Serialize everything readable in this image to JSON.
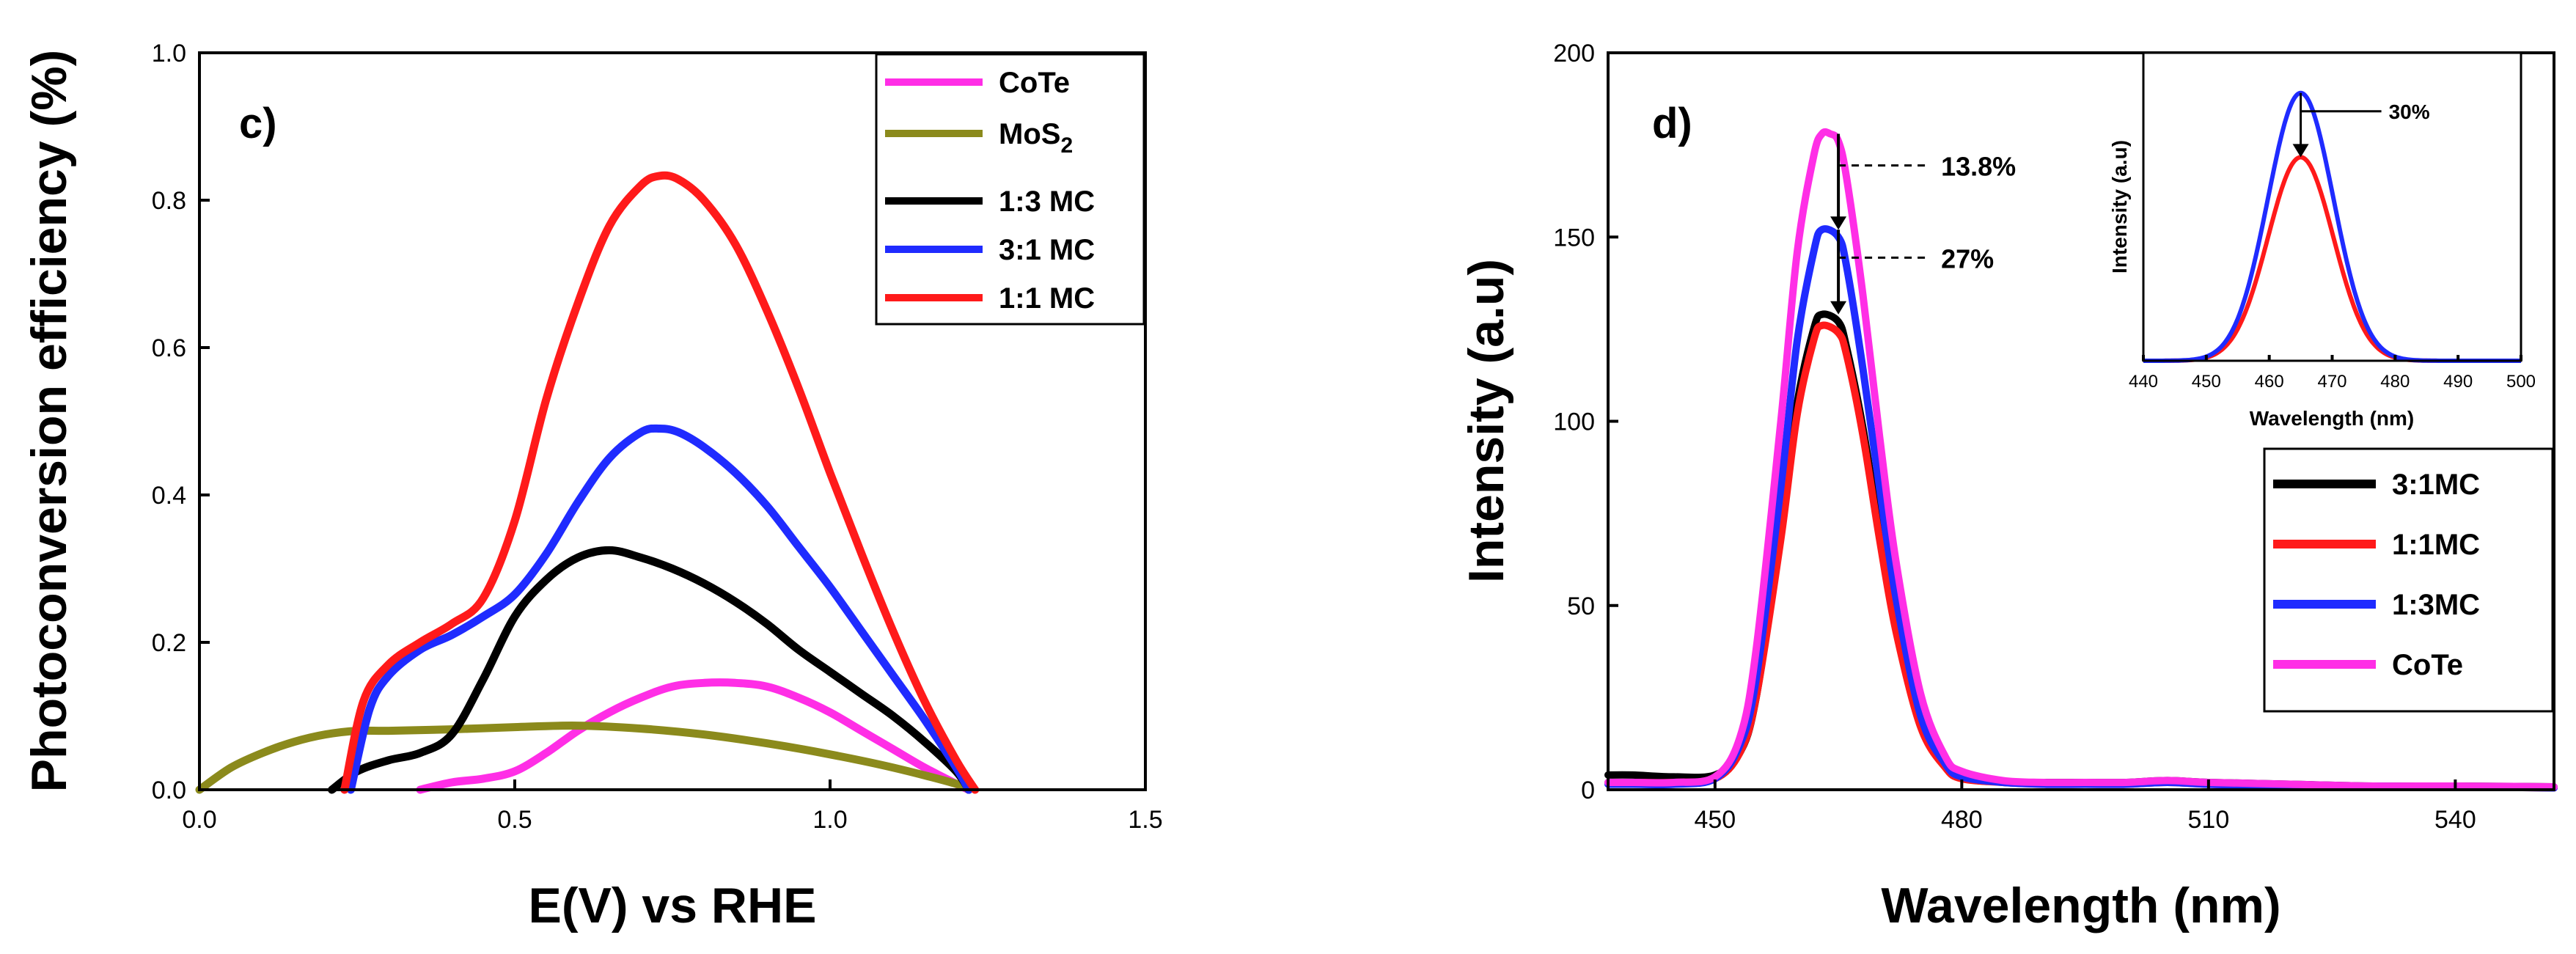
{
  "chart_data": [
    {
      "type": "line",
      "panel_label": "c)",
      "title": "",
      "xlabel": "E(V) vs RHE",
      "ylabel": "Photoconversion efficiency (%)",
      "xlim": [
        0.0,
        1.5
      ],
      "ylim": [
        0.0,
        1.0
      ],
      "xticks": [
        0.0,
        0.5,
        1.0,
        1.5
      ],
      "xtick_labels": [
        "0.0",
        "0.5",
        "1.0",
        "1.5"
      ],
      "yticks": [
        0.0,
        0.2,
        0.4,
        0.6,
        0.8,
        1.0
      ],
      "ytick_labels": [
        "0.0",
        "0.2",
        "0.4",
        "0.6",
        "0.8",
        "1.0"
      ],
      "legend_position": "top-right",
      "series": [
        {
          "name": "CoTe",
          "color": "#ff2ee6",
          "x": [
            0.35,
            0.4,
            0.45,
            0.5,
            0.55,
            0.6,
            0.65,
            0.7,
            0.75,
            0.8,
            0.85,
            0.9,
            0.95,
            1.0,
            1.05,
            1.1,
            1.15,
            1.2,
            1.22
          ],
          "y": [
            0.0,
            0.01,
            0.015,
            0.025,
            0.05,
            0.08,
            0.105,
            0.125,
            0.14,
            0.145,
            0.145,
            0.14,
            0.125,
            0.105,
            0.08,
            0.055,
            0.03,
            0.008,
            0.0
          ]
        },
        {
          "name": "MoS2",
          "label_main": "MoS",
          "label_sub": "2",
          "color": "#8b8a1c",
          "x": [
            0.0,
            0.05,
            0.1,
            0.15,
            0.2,
            0.25,
            0.3,
            0.4,
            0.5,
            0.6,
            0.7,
            0.8,
            0.9,
            1.0,
            1.1,
            1.2,
            1.22
          ],
          "y": [
            0.0,
            0.03,
            0.05,
            0.065,
            0.075,
            0.08,
            0.08,
            0.082,
            0.085,
            0.087,
            0.083,
            0.075,
            0.063,
            0.048,
            0.03,
            0.008,
            0.0
          ]
        },
        {
          "name": "1:3 MC",
          "color": "#000000",
          "x": [
            0.21,
            0.25,
            0.3,
            0.35,
            0.4,
            0.45,
            0.5,
            0.55,
            0.6,
            0.65,
            0.7,
            0.75,
            0.8,
            0.85,
            0.9,
            0.95,
            1.0,
            1.05,
            1.1,
            1.15,
            1.2,
            1.22
          ],
          "y": [
            0.0,
            0.025,
            0.04,
            0.05,
            0.075,
            0.15,
            0.235,
            0.285,
            0.315,
            0.325,
            0.315,
            0.3,
            0.28,
            0.255,
            0.225,
            0.19,
            0.16,
            0.13,
            0.1,
            0.065,
            0.025,
            0.0
          ]
        },
        {
          "name": "3:1 MC",
          "color": "#1f2bff",
          "x": [
            0.24,
            0.27,
            0.3,
            0.35,
            0.4,
            0.45,
            0.5,
            0.55,
            0.6,
            0.65,
            0.7,
            0.73,
            0.76,
            0.8,
            0.85,
            0.9,
            0.95,
            1.0,
            1.05,
            1.1,
            1.15,
            1.2,
            1.22
          ],
          "y": [
            0.0,
            0.11,
            0.155,
            0.19,
            0.21,
            0.235,
            0.265,
            0.32,
            0.39,
            0.45,
            0.485,
            0.49,
            0.485,
            0.465,
            0.43,
            0.385,
            0.33,
            0.275,
            0.215,
            0.155,
            0.095,
            0.03,
            0.0
          ]
        },
        {
          "name": "1:1 MC",
          "color": "#ff1a1a",
          "x": [
            0.23,
            0.26,
            0.3,
            0.35,
            0.4,
            0.45,
            0.5,
            0.55,
            0.6,
            0.65,
            0.7,
            0.73,
            0.76,
            0.8,
            0.85,
            0.9,
            0.95,
            1.0,
            1.05,
            1.1,
            1.15,
            1.2,
            1.23
          ],
          "y": [
            0.0,
            0.12,
            0.17,
            0.2,
            0.225,
            0.26,
            0.365,
            0.53,
            0.66,
            0.765,
            0.82,
            0.833,
            0.828,
            0.8,
            0.74,
            0.65,
            0.545,
            0.43,
            0.32,
            0.215,
            0.12,
            0.04,
            0.0
          ]
        }
      ]
    },
    {
      "type": "line",
      "panel_label": "d)",
      "title": "",
      "xlabel": "Wavelength (nm)",
      "ylabel": "Intensity (a.u)",
      "xlim": [
        437,
        552
      ],
      "ylim": [
        0,
        200
      ],
      "xticks": [
        450,
        480,
        510,
        540
      ],
      "xtick_labels": [
        "450",
        "480",
        "510",
        "540"
      ],
      "yticks": [
        0,
        50,
        100,
        150,
        200
      ],
      "ytick_labels": [
        "0",
        "50",
        "100",
        "150",
        "200"
      ],
      "legend_position": "bottom-right",
      "series": [
        {
          "name": "3:1MC",
          "color": "#000000",
          "x": [
            437,
            440,
            445,
            450,
            453,
            455,
            458,
            460,
            462,
            463,
            465,
            466,
            468,
            470,
            472,
            475,
            478,
            480,
            485,
            490,
            495,
            500,
            505,
            510,
            520,
            530,
            540,
            552
          ],
          "y": [
            4,
            4,
            3.5,
            4,
            10,
            25,
            70,
            105,
            125,
            129,
            127,
            120,
            98,
            70,
            45,
            18,
            7,
            4,
            2,
            2,
            2,
            2,
            2.5,
            2,
            1.5,
            1,
            1,
            0.8
          ]
        },
        {
          "name": "1:1MC",
          "color": "#ff1a1a",
          "x": [
            437,
            440,
            445,
            450,
            453,
            455,
            458,
            460,
            462,
            463,
            465,
            466,
            468,
            470,
            472,
            475,
            478,
            480,
            485,
            490,
            495,
            500,
            505,
            510,
            520,
            530,
            540,
            552
          ],
          "y": [
            2,
            2,
            2,
            3,
            10,
            25,
            68,
            102,
            122,
            126,
            124,
            118,
            96,
            68,
            43,
            17,
            6,
            3,
            2,
            1.5,
            1.5,
            1.5,
            2,
            1.5,
            1,
            1,
            0.8,
            0.5
          ]
        },
        {
          "name": "1:3MC",
          "color": "#1f2bff",
          "x": [
            437,
            440,
            445,
            450,
            453,
            455,
            458,
            460,
            462,
            463,
            465,
            466,
            468,
            470,
            472,
            475,
            478,
            480,
            485,
            490,
            495,
            500,
            505,
            510,
            520,
            530,
            540,
            552
          ],
          "y": [
            1.5,
            1.5,
            1.5,
            3,
            12,
            30,
            82,
            122,
            146,
            152,
            150,
            142,
            114,
            82,
            52,
            20,
            7,
            3.5,
            2,
            1.5,
            1.5,
            1.5,
            2,
            1.5,
            1,
            1,
            0.8,
            0.5
          ]
        },
        {
          "name": "CoTe",
          "color": "#ff2ee6",
          "x": [
            437,
            440,
            445,
            450,
            453,
            455,
            458,
            460,
            462,
            463,
            464,
            465,
            466,
            468,
            470,
            472,
            475,
            478,
            480,
            485,
            490,
            495,
            500,
            505,
            510,
            520,
            530,
            540,
            552
          ],
          "y": [
            2,
            2,
            2,
            3.5,
            14,
            38,
            100,
            146,
            172,
            178,
            178,
            176,
            166,
            134,
            96,
            62,
            26,
            9,
            5,
            2.5,
            2,
            2,
            2,
            2.5,
            2,
            1.5,
            1,
            1,
            0.8
          ]
        }
      ],
      "annotations": [
        {
          "text": "13.8%",
          "x": 465,
          "y_from": 178,
          "y_to": 152
        },
        {
          "text": "27%",
          "x": 465,
          "y_from": 152,
          "y_to": 129
        }
      ],
      "inset": {
        "type": "line",
        "xlabel": "Wavelength (nm)",
        "ylabel": "Intensity (a.u)",
        "xlim": [
          440,
          500
        ],
        "ylim": [
          0,
          1.15
        ],
        "xticks": [
          440,
          450,
          460,
          470,
          480,
          490,
          500
        ],
        "xtick_labels": [
          "440",
          "450",
          "460",
          "470",
          "480",
          "490",
          "500"
        ],
        "annotation": {
          "text": "30%",
          "x": 465,
          "y_from": 1.0,
          "y_to": 0.76
        },
        "series": [
          {
            "name": "1:1MC",
            "color": "#ff1a1a",
            "center": 465,
            "sigma": 5.2,
            "peak": 0.76
          },
          {
            "name": "1:3MC",
            "color": "#1f2bff",
            "center": 465,
            "sigma": 5.2,
            "peak": 1.0
          }
        ]
      }
    }
  ]
}
